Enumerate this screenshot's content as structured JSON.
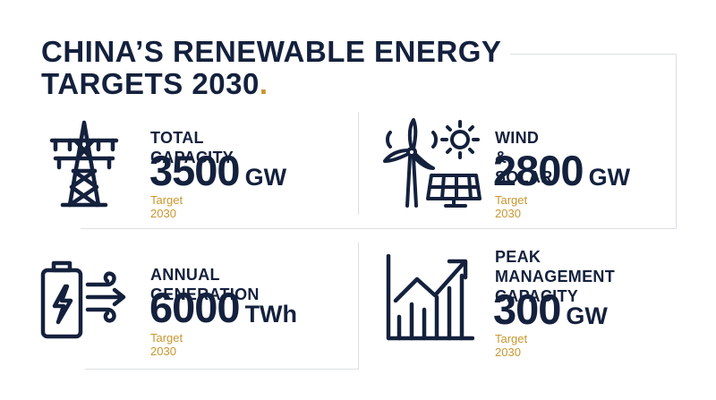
{
  "title": {
    "line1": "CHINA’S RENEWABLE ENERGY",
    "line2": "TARGETS 2030",
    "dot": "."
  },
  "cards": [
    {
      "label": "TOTAL CAPACITY",
      "number": "3500",
      "unit": "GW",
      "target": "Target 2030",
      "icon": "transmission-tower-icon"
    },
    {
      "label": "WIND & SOLAR",
      "number": "2800",
      "unit": "GW",
      "target": "Target 2030",
      "icon": "wind-solar-icon"
    },
    {
      "label": "ANNUAL GENERATION",
      "number": "6000",
      "unit": "TWh",
      "target": "Target 2030",
      "icon": "battery-wind-icon"
    },
    {
      "label_line1": "PEAK MANAGEMENT",
      "label_line2": "CAPACITY",
      "number": "300",
      "unit": "GW",
      "target": "Target 2030",
      "icon": "growth-chart-icon"
    }
  ],
  "colors": {
    "navy": "#14213d",
    "gold": "#c8962e",
    "frame": "#dcdfe4"
  }
}
